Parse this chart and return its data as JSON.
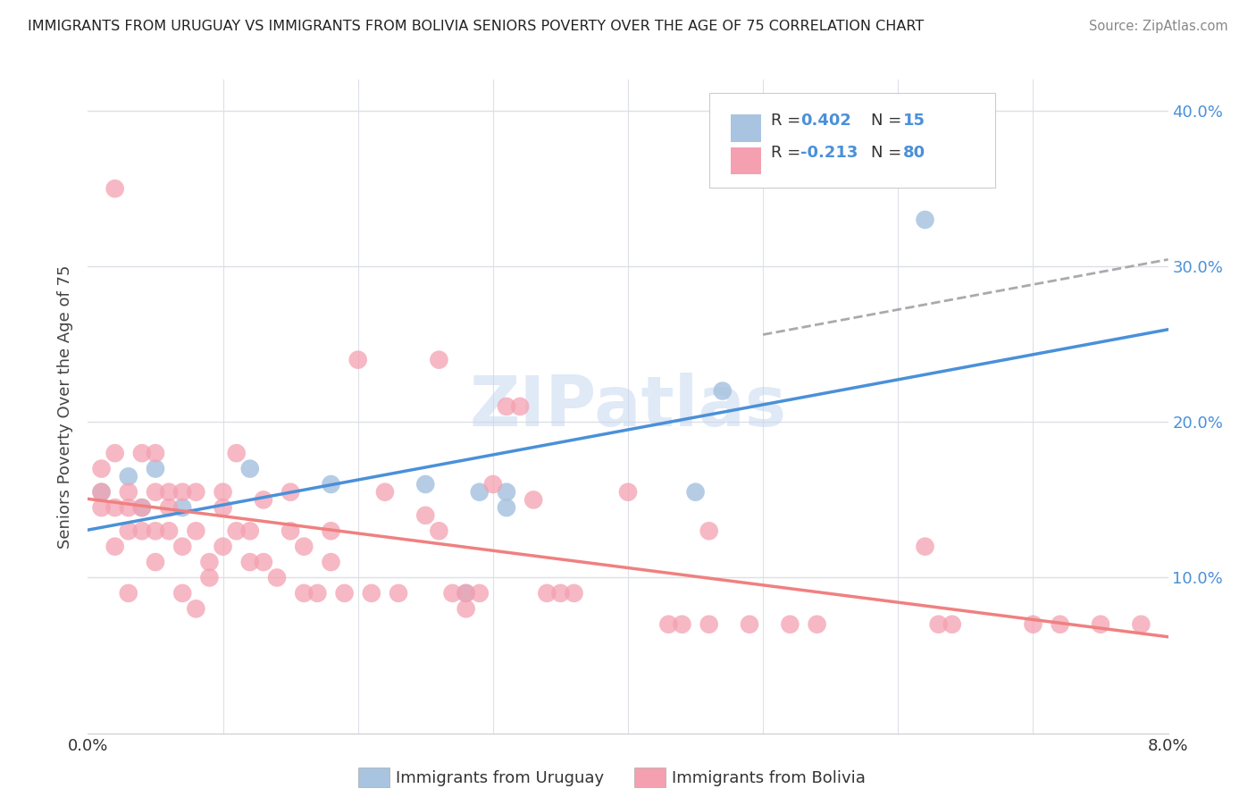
{
  "title": "IMMIGRANTS FROM URUGUAY VS IMMIGRANTS FROM BOLIVIA SENIORS POVERTY OVER THE AGE OF 75 CORRELATION CHART",
  "source": "Source: ZipAtlas.com",
  "ylabel": "Seniors Poverty Over the Age of 75",
  "xlim": [
    0.0,
    0.08
  ],
  "ylim": [
    0.0,
    0.42
  ],
  "color_uruguay": "#a8c4e0",
  "color_bolivia": "#f4a0b0",
  "line_color_uruguay": "#4a90d9",
  "line_color_bolivia": "#f08080",
  "line_color_dash": "#aaaaaa",
  "watermark": "ZIPatlas",
  "background_color": "#ffffff",
  "grid_color": "#dde0e8",
  "legend_r1": "0.402",
  "legend_n1": "15",
  "legend_r2": "-0.213",
  "legend_n2": "80",
  "scatter_uruguay_x": [
    0.001,
    0.003,
    0.004,
    0.005,
    0.007,
    0.012,
    0.018,
    0.025,
    0.029,
    0.031,
    0.031,
    0.045,
    0.047,
    0.062,
    0.028
  ],
  "scatter_uruguay_y": [
    0.155,
    0.165,
    0.145,
    0.17,
    0.145,
    0.17,
    0.16,
    0.16,
    0.155,
    0.145,
    0.155,
    0.155,
    0.22,
    0.33,
    0.09
  ],
  "scatter_bolivia_x": [
    0.002,
    0.001,
    0.001,
    0.001,
    0.002,
    0.002,
    0.002,
    0.003,
    0.003,
    0.003,
    0.003,
    0.004,
    0.004,
    0.004,
    0.005,
    0.005,
    0.005,
    0.005,
    0.006,
    0.006,
    0.006,
    0.007,
    0.007,
    0.007,
    0.008,
    0.008,
    0.008,
    0.009,
    0.009,
    0.01,
    0.01,
    0.01,
    0.011,
    0.011,
    0.012,
    0.012,
    0.013,
    0.013,
    0.014,
    0.015,
    0.015,
    0.016,
    0.016,
    0.017,
    0.018,
    0.018,
    0.019,
    0.02,
    0.021,
    0.022,
    0.023,
    0.025,
    0.026,
    0.026,
    0.027,
    0.028,
    0.028,
    0.029,
    0.03,
    0.031,
    0.032,
    0.033,
    0.034,
    0.035,
    0.036,
    0.04,
    0.043,
    0.044,
    0.046,
    0.046,
    0.049,
    0.052,
    0.054,
    0.062,
    0.063,
    0.064,
    0.07,
    0.072,
    0.075,
    0.078
  ],
  "scatter_bolivia_y": [
    0.35,
    0.155,
    0.145,
    0.17,
    0.18,
    0.145,
    0.12,
    0.155,
    0.145,
    0.13,
    0.09,
    0.145,
    0.13,
    0.18,
    0.18,
    0.155,
    0.13,
    0.11,
    0.145,
    0.155,
    0.13,
    0.155,
    0.12,
    0.09,
    0.155,
    0.13,
    0.08,
    0.11,
    0.1,
    0.145,
    0.155,
    0.12,
    0.13,
    0.18,
    0.13,
    0.11,
    0.15,
    0.11,
    0.1,
    0.155,
    0.13,
    0.12,
    0.09,
    0.09,
    0.13,
    0.11,
    0.09,
    0.24,
    0.09,
    0.155,
    0.09,
    0.14,
    0.24,
    0.13,
    0.09,
    0.08,
    0.09,
    0.09,
    0.16,
    0.21,
    0.21,
    0.15,
    0.09,
    0.09,
    0.09,
    0.155,
    0.07,
    0.07,
    0.13,
    0.07,
    0.07,
    0.07,
    0.07,
    0.12,
    0.07,
    0.07,
    0.07,
    0.07,
    0.07,
    0.07
  ]
}
